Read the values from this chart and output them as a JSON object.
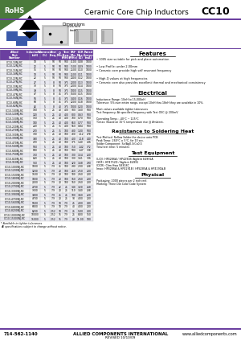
{
  "title": "Ceramic Core Chip Inductors",
  "part_number": "CC10",
  "rohs_text": "RoHS",
  "phone": "714-562-1140",
  "company": "ALLIED COMPONENTS INTERNATIONAL",
  "website": "www.alliedcomponents.com",
  "revised": "REVISED 10/10/09",
  "bg_color": "#ffffff",
  "header_color": "#6b3fa0",
  "table_header_bg": "#6b3fa0",
  "table_header_fg": "#ffffff",
  "table_row_alt": "#e8e8f0",
  "table_row_norm": "#f5f5f5",
  "rohs_bg": "#4a7a3a",
  "separator_color": "#6b3fa0",
  "col_headers": [
    "Allied\nPart\nNumber",
    "Inductance\n(nH)",
    "Tolerance\n(%)",
    "Test\nFreq.",
    "Q\nMin.",
    "Test\nFreq.\n(MHz)",
    "SRF\nMin.\n(MHz)",
    "DCR\nMax.\n(Ω)",
    "Rated\nCurrent\n(mA)"
  ],
  "table_data": [
    [
      "CC10-10NJ-RC",
      "10",
      "5",
      "50",
      "50",
      "500",
      "4100",
      "0.08",
      "1000"
    ],
    [
      "CC10-12NJ-RC",
      "12",
      "5",
      "50",
      "50",
      "500",
      "3500",
      "0.09",
      "1000"
    ],
    [
      "CC10-15NJ-RC",
      "15",
      "5",
      "50",
      "50",
      "500",
      "2500",
      "0.10",
      "1000"
    ],
    [
      "CC10-18NJ-RC",
      "18",
      "5",
      "50",
      "50",
      "500",
      "2500",
      "0.11",
      "1000"
    ],
    [
      "CC10-22NJ-RC",
      "22",
      "5",
      "50",
      "50",
      "500",
      "2400",
      "0.12",
      "1000"
    ],
    [
      "CC10-27NJ-RC",
      "27",
      "5",
      "8",
      "50",
      "375",
      "2000",
      "0.13",
      "1000"
    ],
    [
      "CC10-33NJ-RC",
      "33",
      "5",
      "8",
      "50",
      "375",
      "2000",
      "0.14",
      "1000"
    ],
    [
      "CC10-39NJ-RC",
      "39",
      "5",
      "8",
      "50",
      "375",
      "1800",
      "0.15",
      "1000"
    ],
    [
      "CC10-47NJ-RC",
      "47",
      "5",
      "8",
      "45",
      "375",
      "1600",
      "0.15",
      "1000"
    ],
    [
      "CC10-56NJ-RC",
      "56",
      "5",
      "8",
      "45",
      "375",
      "1400",
      "0.16",
      "1000"
    ],
    [
      "CC10-68NJ-RC",
      "68",
      "5",
      "8",
      "45",
      "375",
      "1200",
      "0.18",
      "1000"
    ],
    [
      "CC10-82NJ-RC",
      "82",
      "5",
      "8",
      "40",
      "375",
      "1000",
      "0.20",
      "1000"
    ],
    [
      "CC10-100NJ-RC",
      "100",
      "5",
      "25",
      "40",
      "400",
      "900",
      "1.60",
      "500"
    ],
    [
      "CC10-120NJ-RC",
      "120",
      "5",
      "25",
      "40",
      "400",
      "800",
      "0.63",
      "500"
    ],
    [
      "CC10-150NJ-RC",
      "150",
      "5",
      "25",
      "40",
      "400",
      "700",
      "0.70",
      "500"
    ],
    [
      "CC10-180NJ-RC",
      "180",
      "5",
      "25",
      "40",
      "400",
      "650",
      "0.77",
      "500"
    ],
    [
      "CC10-220NJ-RC",
      "220",
      "5",
      "25",
      "35",
      "400",
      "550",
      "0.84",
      "500"
    ],
    [
      "CC10-270NJ-RC",
      "270",
      "5",
      "25",
      "35",
      "100",
      "480",
      "1.00",
      "500"
    ],
    [
      "CC10-330NJ-RC",
      "330",
      "5",
      "25",
      "40",
      "100",
      "430",
      "1.12",
      "478"
    ],
    [
      "CC10-390NJ-RC",
      "390",
      "5",
      "25",
      "40",
      "100",
      "400",
      "1.18",
      "440"
    ],
    [
      "CC10-470NJ-RC",
      "470",
      "5",
      "25",
      "40",
      "100",
      "375",
      "1.40",
      "406"
    ],
    [
      "CC10-560NJ-RC",
      "560",
      "5",
      "25",
      "40",
      "100",
      "350",
      "1.42",
      "372"
    ],
    [
      "CC10-680NJ-RC",
      "680",
      "5",
      "25",
      "40",
      "100",
      "500",
      "1.47",
      "338"
    ],
    [
      "CC10-750NJ-RC",
      "750",
      "5",
      "25",
      "40",
      "100",
      "300",
      "1.54",
      "320"
    ],
    [
      "CC10-820NJ-RC",
      "820",
      "5",
      "25",
      "40",
      "100",
      "300",
      "1.61",
      "306"
    ],
    [
      "CC10-910NJ-RC",
      "910",
      "5",
      "25",
      "40",
      "100",
      "320",
      "1.68",
      "290"
    ],
    [
      "CC10-1000NJ-RC",
      "1000",
      "5",
      "7.9",
      "25",
      "100",
      "290",
      "2.00",
      "238"
    ],
    [
      "CC10-1200NJ-RC",
      "1200",
      "5",
      "7.9",
      "20",
      "100",
      "260",
      "2.50",
      "200"
    ],
    [
      "CC10-1500NJ-RC",
      "1500",
      "5",
      "7.9",
      "20",
      "100",
      "180",
      "2.60",
      "200"
    ],
    [
      "CC10-1800NJ-RC",
      "1800",
      "5",
      "7.9",
      "20",
      "100",
      "160",
      "2.60",
      "200"
    ],
    [
      "CC10-2000NJ-RC",
      "2000",
      "5",
      "7.9",
      "20",
      "100",
      "160",
      "2.60",
      "200"
    ],
    [
      "CC10-2700NJ-RC",
      "2700",
      "5",
      "7.9",
      "22",
      "25",
      "140",
      "3.20",
      "268"
    ],
    [
      "CC10-3300NJ-RC",
      "3300",
      "5",
      "7.9",
      "20",
      "25",
      "110",
      "3.40",
      "238"
    ],
    [
      "CC10-3900NJ-RC",
      "3900",
      "5",
      "7.9",
      "25",
      "25",
      "100",
      "3.60",
      "220"
    ],
    [
      "CC10-4700NJ-RC",
      "4700",
      "5",
      "7.9",
      "20",
      "25",
      "90",
      "4.00",
      "200"
    ],
    [
      "CC10-5600NJ-RC",
      "5600",
      "5",
      "7.9",
      "18",
      "7.9",
      "45",
      "4.00",
      "240"
    ],
    [
      "CC10-6800NJ-RC",
      "6800",
      "5",
      "7.9",
      "18",
      "7.9",
      "40",
      "4.00",
      "200"
    ],
    [
      "CC10-8200NJ-RC",
      "8200",
      "5",
      "2.52",
      "18",
      "7.9",
      "25",
      "5.00",
      "200"
    ],
    [
      "CC10-10000NJ-RC",
      "10000",
      "5",
      "2.52",
      "15",
      "7.9",
      "25",
      "8.00",
      "150"
    ],
    [
      "CC10-15000NJ-RC",
      "15000",
      "5",
      "2.52",
      "15",
      "7.9",
      "20",
      "11.00",
      "100"
    ]
  ],
  "features_title": "Features",
  "features": [
    "1005 size suitable for pick and place automation",
    "Low Profile: under 2.00mm",
    "Ceramic core provide high self resonant frequency",
    "High-Q values at high frequencies",
    "Ceramic core also provides excellent thermal and mechanical consistency"
  ],
  "electrical_title": "Electrical",
  "electrical_lines": [
    "Inductance Range: 10nH to 15,000nH",
    "Tolerance: 5% over entire range, except 10nH thru 18nH they are available in 10%.",
    "Most values available tighter tolerances",
    "Test Frequency: At specified frequency with Test OSC @ 200mV",
    "Operating Temp.: -40°C ~ 125°C",
    "Tcmax: Based on 15°C temperature rise @ Ambient."
  ],
  "soldering_title": "Resistance to Soldering Heat",
  "soldering_lines": [
    "Test Method: Reflow Solder the device onto PCB",
    "Peak Temp: 260°C ± 5°C, for 10 sec.",
    "Solder Component: Sn/Ag0.3/Cu0.5",
    "Total test time: 5 minutes"
  ],
  "equip_title": "Test Equipment",
  "equip_lines": [
    "(L/Q): HP4286A / HP4291B /Agilent E4991A",
    "(SRF): HP4752D / Agilent E4991",
    "(DCR): Chm Hwa 58308C",
    "Imax: HP4286A & HP4291B / HP4285A & HP4291A-B"
  ],
  "physical_title": "Physical",
  "physical_lines": [
    "Packaging: 2000 pieces per 2 inch reel.",
    "Marking: Three Dot Color Code System"
  ],
  "footer_note_lines": [
    "* Available in tighter tolerances",
    "All specifications subject to change without notice."
  ]
}
